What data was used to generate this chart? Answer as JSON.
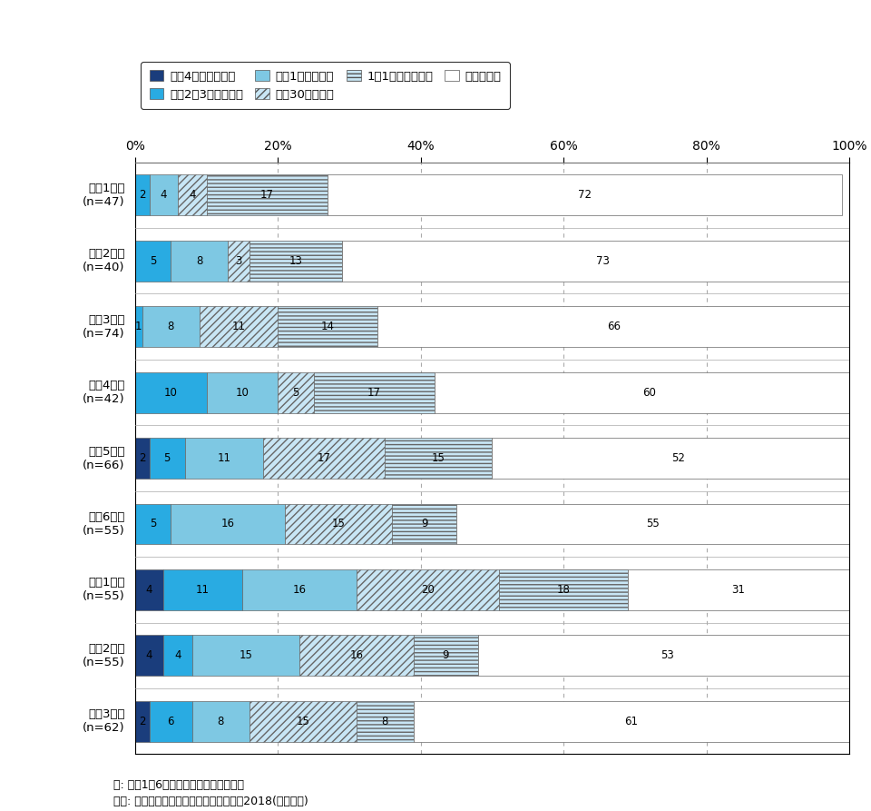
{
  "categories": [
    "小学1年生\n(n=47)",
    "小学2年生\n(n=40)",
    "小学3年生\n(n=74)",
    "小学4年生\n(n=42)",
    "小学5年生\n(n=66)",
    "小学6年生\n(n=55)",
    "中学1年生\n(n=55)",
    "中学2年生\n(n=55)",
    "中学3年生\n(n=62)"
  ],
  "series": [
    {
      "label": "毎日4時間より多い",
      "values": [
        0,
        0,
        0,
        0,
        2,
        0,
        4,
        4,
        2
      ],
      "color": "#1a3d7c",
      "hatch": null
    },
    {
      "label": "毎日2〜3時間くらい",
      "values": [
        2,
        5,
        1,
        10,
        5,
        5,
        11,
        4,
        6
      ],
      "color": "#29abe2",
      "hatch": null
    },
    {
      "label": "毎日1時間くらい",
      "values": [
        4,
        8,
        8,
        10,
        11,
        16,
        16,
        15,
        8
      ],
      "color": "#7ec8e3",
      "hatch": null
    },
    {
      "label": "毎日30分くらい",
      "values": [
        4,
        3,
        11,
        5,
        17,
        15,
        20,
        16,
        15
      ],
      "color": "#c8e6f5",
      "hatch": "////"
    },
    {
      "label": "1日1回より少ない",
      "values": [
        17,
        13,
        14,
        17,
        15,
        9,
        18,
        9,
        8
      ],
      "color": "#c8e6f5",
      "hatch": "----"
    },
    {
      "label": "していない",
      "values": [
        72,
        73,
        66,
        60,
        52,
        55,
        31,
        53,
        61
      ],
      "color": "#ffffff",
      "hatch": null
    }
  ],
  "footnote1": "注: 関東1都6県在住の小中学生が回答。",
  "footnote2": "出所: 子どものケータイ利用に関する調査2018(訪問留置)",
  "xlim": [
    0,
    100
  ],
  "xticks": [
    0,
    20,
    40,
    60,
    80,
    100
  ]
}
